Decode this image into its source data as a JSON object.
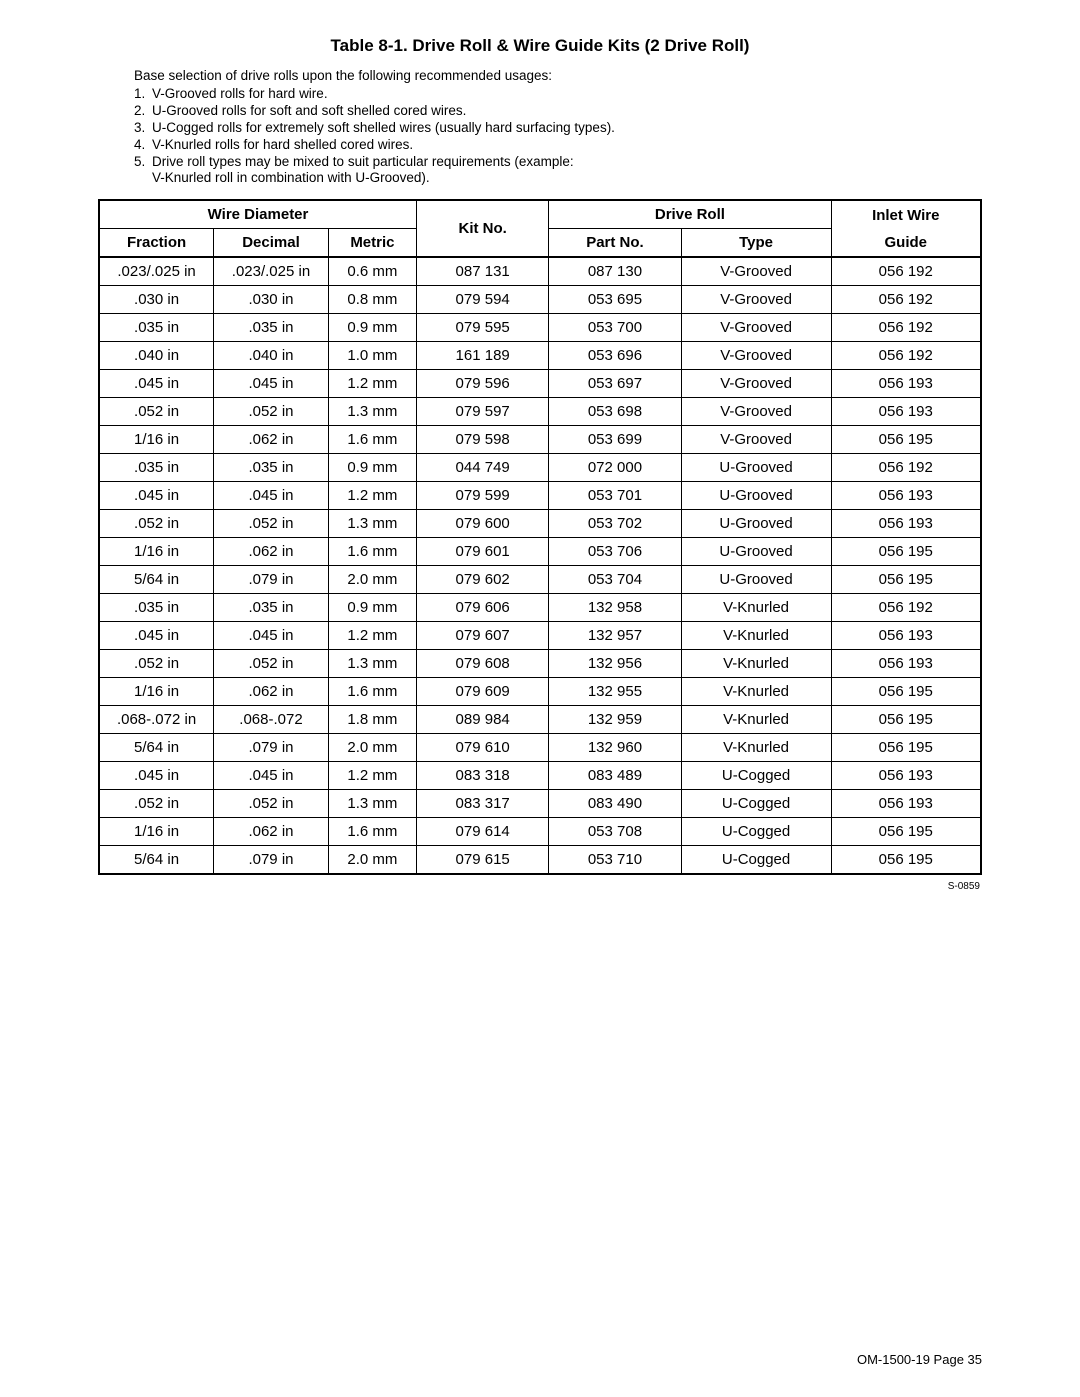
{
  "title": "Table 8-1. Drive Roll & Wire Guide Kits (2 Drive Roll)",
  "intro": "Base selection of drive rolls upon the following recommended usages:",
  "notes": [
    {
      "n": "1.",
      "text": "V-Grooved rolls for hard wire."
    },
    {
      "n": "2.",
      "text": "U-Grooved rolls for soft and soft shelled cored wires."
    },
    {
      "n": "3.",
      "text": "U-Cogged rolls for extremely soft shelled wires (usually hard surfacing types)."
    },
    {
      "n": "4.",
      "text": "V-Knurled rolls for hard shelled cored wires."
    },
    {
      "n": "5.",
      "text": "Drive roll types may be mixed to suit particular requirements (example:"
    }
  ],
  "note_sub": "V-Knurled roll in combination with U-Grooved).",
  "headers": {
    "wire_diameter": "Wire Diameter",
    "fraction": "Fraction",
    "decimal": "Decimal",
    "metric": "Metric",
    "kit_no": "Kit No.",
    "drive_roll": "Drive Roll",
    "part_no": "Part No.",
    "type": "Type",
    "inlet_wire": "Inlet Wire",
    "guide": "Guide"
  },
  "col_widths": [
    "13%",
    "13%",
    "10%",
    "15%",
    "15%",
    "17%",
    "17%"
  ],
  "groups": [
    {
      "rows": [
        {
          "c": [
            ".023/.025 in",
            ".023/.025 in",
            "0.6 mm",
            "087 131",
            "087 130",
            "V-Grooved",
            "056 192"
          ]
        },
        {
          "c": [
            ".030 in",
            ".030 in",
            "0.8 mm",
            "079 594",
            "053 695",
            "V-Grooved",
            "056 192"
          ]
        },
        {
          "c": [
            ".035 in",
            ".035 in",
            "0.9 mm",
            "079 595",
            "053 700",
            "V-Grooved",
            "056 192"
          ]
        },
        {
          "c": [
            ".040 in",
            ".040 in",
            "1.0 mm",
            "161 189",
            "053 696",
            "V-Grooved",
            "056 192"
          ]
        },
        {
          "c": [
            ".045 in",
            ".045 in",
            "1.2 mm",
            "079 596",
            "053 697",
            "V-Grooved",
            "056 193"
          ]
        },
        {
          "c": [
            ".052 in",
            ".052 in",
            "1.3 mm",
            "079 597",
            "053 698",
            "V-Grooved",
            "056 193"
          ]
        },
        {
          "c": [
            "1/16 in",
            ".062 in",
            "1.6 mm",
            "079 598",
            "053 699",
            "V-Grooved",
            "056 195"
          ]
        }
      ]
    },
    {
      "rows": [
        {
          "c": [
            ".035 in",
            ".035 in",
            "0.9 mm",
            "044 749",
            "072 000",
            "U-Grooved",
            "056 192"
          ]
        },
        {
          "c": [
            ".045 in",
            ".045 in",
            "1.2 mm",
            "079 599",
            "053 701",
            "U-Grooved",
            "056 193"
          ]
        },
        {
          "c": [
            ".052 in",
            ".052 in",
            "1.3 mm",
            "079 600",
            "053 702",
            "U-Grooved",
            "056 193"
          ]
        },
        {
          "c": [
            "1/16 in",
            ".062 in",
            "1.6 mm",
            "079 601",
            "053 706",
            "U-Grooved",
            "056 195"
          ]
        },
        {
          "c": [
            "5/64 in",
            ".079 in",
            "2.0 mm",
            "079 602",
            "053 704",
            "U-Grooved",
            "056 195"
          ]
        }
      ]
    },
    {
      "rows": [
        {
          "c": [
            ".035 in",
            ".035 in",
            "0.9 mm",
            "079 606",
            "132 958",
            "V-Knurled",
            "056 192"
          ]
        },
        {
          "c": [
            ".045 in",
            ".045 in",
            "1.2 mm",
            "079 607",
            "132 957",
            "V-Knurled",
            "056 193"
          ]
        },
        {
          "c": [
            ".052 in",
            ".052 in",
            "1.3 mm",
            "079 608",
            "132 956",
            "V-Knurled",
            "056 193"
          ]
        },
        {
          "c": [
            "1/16 in",
            ".062 in",
            "1.6 mm",
            "079 609",
            "132 955",
            "V-Knurled",
            "056 195"
          ]
        },
        {
          "c": [
            ".068-.072 in",
            ".068-.072",
            "1.8 mm",
            "089 984",
            "132 959",
            "V-Knurled",
            "056 195"
          ]
        },
        {
          "c": [
            "5/64 in",
            ".079 in",
            "2.0 mm",
            "079 610",
            "132 960",
            "V-Knurled",
            "056 195"
          ]
        }
      ]
    },
    {
      "rows": [
        {
          "c": [
            ".045 in",
            ".045 in",
            "1.2 mm",
            "083 318",
            "083 489",
            "U-Cogged",
            "056 193"
          ]
        },
        {
          "c": [
            ".052 in",
            ".052 in",
            "1.3 mm",
            "083 317",
            "083 490",
            "U-Cogged",
            "056 193"
          ]
        },
        {
          "c": [
            "1/16 in",
            ".062 in",
            "1.6 mm",
            "079 614",
            "053 708",
            "U-Cogged",
            "056 195"
          ]
        },
        {
          "c": [
            "5/64 in",
            ".079 in",
            "2.0 mm",
            "079 615",
            "053 710",
            "U-Cogged",
            "056 195"
          ]
        }
      ]
    }
  ],
  "ref": "S-0859",
  "footer": "OM-1500-19 Page 35"
}
